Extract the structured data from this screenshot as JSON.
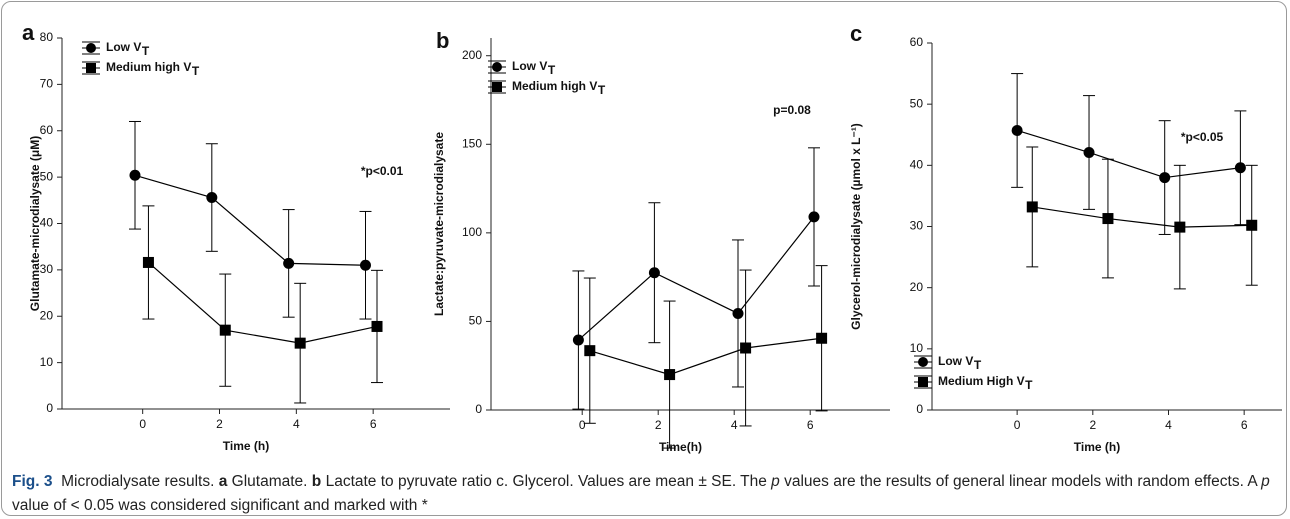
{
  "chart_data": [
    {
      "type": "line",
      "panel_label": "a",
      "ylabel": "Glutamate-microdialysate (μM)",
      "xlabel": "Time (h)",
      "xlim": [
        -2.1,
        8
      ],
      "ylim": [
        0,
        80
      ],
      "xticks": [
        0,
        2,
        4,
        6
      ],
      "yticks": [
        0,
        10,
        20,
        30,
        40,
        50,
        60,
        70,
        80
      ],
      "legend": "upper left",
      "annotation": "*p<0.01",
      "series": [
        {
          "name": "Low V",
          "name_subscript": "T",
          "color": "#000000",
          "marker": "circle",
          "x": [
            -0.2,
            1.8,
            3.8,
            5.8
          ],
          "values": [
            50.4,
            45.6,
            31.4,
            31.0
          ],
          "errors": [
            11.6,
            11.6,
            11.6,
            11.6
          ]
        },
        {
          "name": "Medium high V",
          "name_subscript": "T",
          "color": "#000000",
          "marker": "square",
          "x": [
            0.15,
            2.15,
            4.1,
            6.1
          ],
          "values": [
            31.6,
            17.0,
            14.2,
            17.8
          ],
          "errors": [
            12.2,
            12.1,
            12.9,
            12.1
          ]
        }
      ]
    },
    {
      "type": "line",
      "panel_label": "b",
      "ylabel": "Lactate:pyruvate-microdialysate",
      "xlabel": "Time(h)",
      "xlim": [
        -2.4,
        8.1
      ],
      "ylim": [
        0,
        210
      ],
      "xticks": [
        0,
        2,
        4,
        6
      ],
      "yticks": [
        0,
        50,
        100,
        150,
        200
      ],
      "legend": "upper left",
      "annotation": "p=0.08",
      "series": [
        {
          "name": "Low V",
          "name_subscript": "T",
          "color": "#000000",
          "marker": "circle",
          "x": [
            -0.1,
            1.9,
            4.1,
            6.1
          ],
          "values": [
            39.5,
            77.5,
            54.5,
            109
          ],
          "errors": [
            39,
            39.5,
            41.5,
            39
          ]
        },
        {
          "name": "Medium high V",
          "name_subscript": "T",
          "color": "#000000",
          "marker": "square",
          "x": [
            0.2,
            2.3,
            4.3,
            6.3
          ],
          "values": [
            33.5,
            20,
            35,
            40.5
          ],
          "errors": [
            41,
            41.5,
            44,
            41
          ]
        }
      ]
    },
    {
      "type": "line",
      "panel_label": "c",
      "ylabel": "Glycerol-microdialysate (µmol x L⁻¹)",
      "xlabel": "Time (h)",
      "xlim": [
        -2.25,
        7
      ],
      "ylim": [
        0,
        60
      ],
      "xticks": [
        0,
        2,
        4,
        6
      ],
      "yticks": [
        0,
        10,
        20,
        30,
        40,
        50,
        60
      ],
      "legend": "lower left",
      "annotation": "*p<0.05",
      "series": [
        {
          "name": "Low V",
          "name_subscript": "T",
          "color": "#000000",
          "marker": "circle",
          "x": [
            0,
            1.9,
            3.9,
            5.9
          ],
          "values": [
            45.7,
            42.1,
            38.0,
            39.6
          ],
          "errors": [
            9.3,
            9.3,
            9.3,
            9.3
          ]
        },
        {
          "name": "Medium High V",
          "name_subscript": "T",
          "color": "#000000",
          "marker": "square",
          "x": [
            0.4,
            2.4,
            4.3,
            6.2
          ],
          "values": [
            33.2,
            31.3,
            29.9,
            30.2
          ],
          "errors": [
            9.8,
            9.7,
            10.1,
            9.8
          ]
        }
      ]
    }
  ],
  "caption": [
    {
      "text": "Fig. 3",
      "bold": true,
      "color": "#1b4f8a"
    },
    {
      "text": "  Microdialysate results. "
    },
    {
      "text": "a",
      "bold": true
    },
    {
      "text": " Glutamate. "
    },
    {
      "text": "b",
      "bold": true
    },
    {
      "text": " Lactate to pyruvate ratio c. Glycerol. Values are mean ± SE. The "
    },
    {
      "text": "p",
      "italic": true
    },
    {
      "text": " values are the results of general linear models with random effects. A "
    },
    {
      "text": "p",
      "italic": true
    },
    {
      "text": " value of < 0.05 was considered significant and marked with *"
    }
  ]
}
